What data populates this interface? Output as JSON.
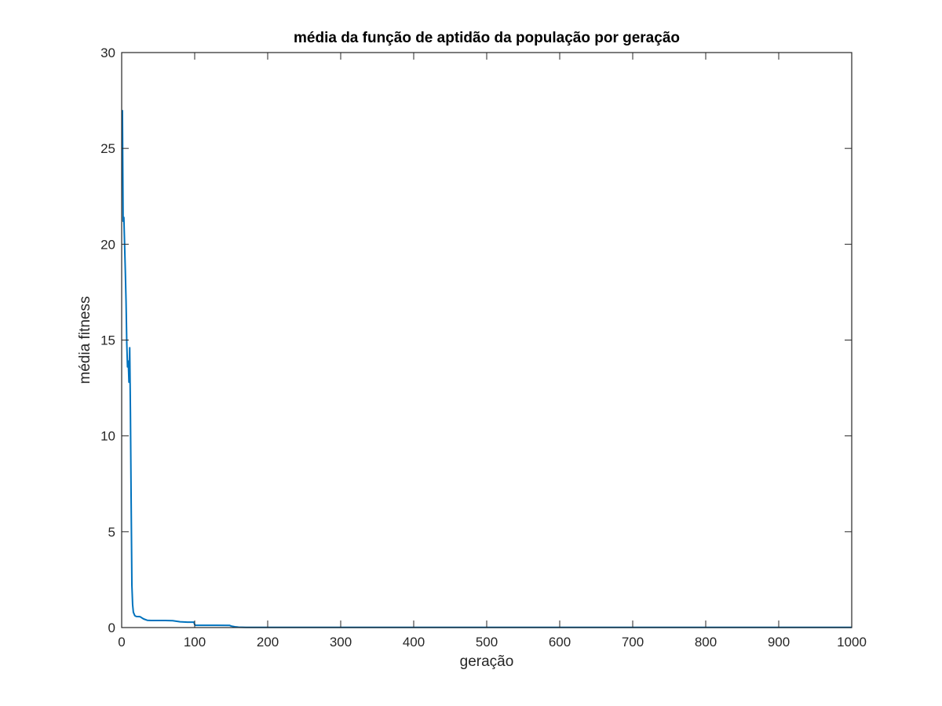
{
  "chart_data": {
    "type": "line",
    "title": "média da função de aptidão da população por geração",
    "xlabel": "geração",
    "ylabel": "média fitness",
    "xlim": [
      0,
      1000
    ],
    "ylim": [
      0,
      30
    ],
    "xticks": [
      0,
      100,
      200,
      300,
      400,
      500,
      600,
      700,
      800,
      900,
      1000
    ],
    "yticks": [
      0,
      5,
      10,
      15,
      20,
      25,
      30
    ],
    "grid": false,
    "legend": "none",
    "series": [
      {
        "color": "#0072BD",
        "x": [
          1,
          2,
          3,
          4,
          5,
          6,
          7,
          8,
          9,
          10,
          11,
          12,
          13,
          14,
          15,
          16,
          18,
          20,
          25,
          30,
          35,
          40,
          50,
          60,
          70,
          80,
          90,
          99,
          100,
          101,
          110,
          130,
          148,
          150,
          155,
          160,
          170,
          200,
          300,
          400,
          500,
          600,
          700,
          800,
          900,
          1000
        ],
        "y": [
          27.0,
          21.2,
          21.4,
          20.0,
          18.6,
          17.0,
          14.8,
          13.6,
          13.9,
          12.8,
          14.6,
          11.2,
          6.5,
          2.2,
          1.2,
          0.8,
          0.62,
          0.58,
          0.57,
          0.45,
          0.38,
          0.37,
          0.37,
          0.37,
          0.36,
          0.3,
          0.28,
          0.28,
          0.15,
          0.12,
          0.12,
          0.12,
          0.11,
          0.08,
          0.04,
          0.02,
          0.01,
          0.01,
          0.01,
          0.01,
          0.01,
          0.01,
          0.01,
          0.01,
          0.01,
          0.01
        ]
      }
    ]
  }
}
